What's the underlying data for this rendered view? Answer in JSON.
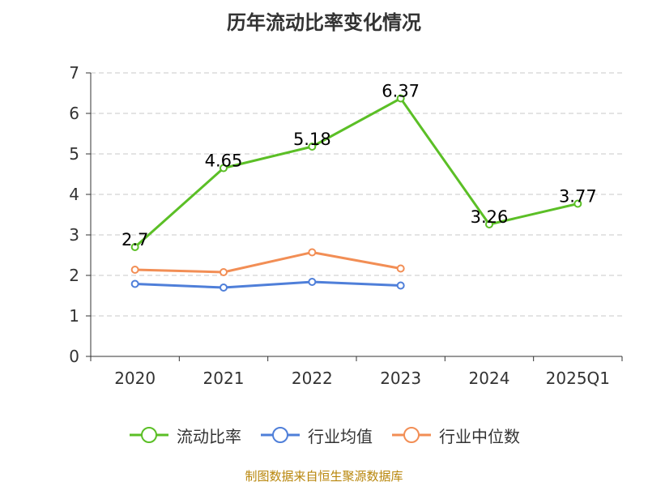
{
  "chart_data": {
    "type": "line",
    "title": "历年流动比率变化情况",
    "categories": [
      "2020",
      "2021",
      "2022",
      "2023",
      "2024",
      "2025Q1"
    ],
    "y_ticks": [
      "0",
      "1",
      "2",
      "3",
      "4",
      "5",
      "6",
      "7"
    ],
    "ylim": [
      0,
      7
    ],
    "grid": true,
    "xlabel": "",
    "ylabel": "",
    "series": [
      {
        "name": "流动比率",
        "color": "#5bbf26",
        "values": [
          2.7,
          4.65,
          5.18,
          6.37,
          3.26,
          3.77
        ],
        "labels": [
          "2.7",
          "4.65",
          "5.18",
          "6.37",
          "3.26",
          "3.77"
        ]
      },
      {
        "name": "行业均值",
        "color": "#4f7fd9",
        "values": [
          1.79,
          1.7,
          1.84,
          1.75,
          null,
          null
        ],
        "labels": null
      },
      {
        "name": "行业中位数",
        "color": "#f28e55",
        "values": [
          2.14,
          2.08,
          2.57,
          2.17,
          null,
          null
        ],
        "labels": null
      }
    ],
    "legend_position": "bottom",
    "source": "制图数据来自恒生聚源数据库"
  }
}
